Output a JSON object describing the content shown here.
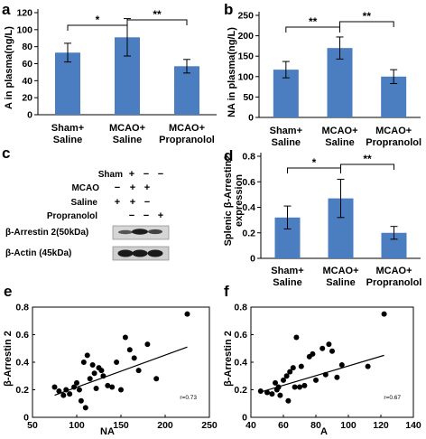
{
  "colors": {
    "bar": "#4a7ec1",
    "axis": "#000000",
    "point": "#000000"
  },
  "chart_data": [
    {
      "panel": "a",
      "type": "bar",
      "ylabel": "A in plasma(ng/L)",
      "ylim": [
        0,
        120
      ],
      "yticks": [
        0,
        20,
        40,
        60,
        80,
        100,
        120
      ],
      "categories": [
        [
          "Sham+",
          "Saline"
        ],
        [
          "MCAO+",
          "Saline"
        ],
        [
          "MCAO+",
          "Propranolol"
        ]
      ],
      "values": [
        73,
        91,
        57
      ],
      "errors": [
        11,
        22,
        8
      ],
      "significance": [
        {
          "from": 0,
          "to": 1,
          "label": "*"
        },
        {
          "from": 1,
          "to": 2,
          "label": "**"
        }
      ]
    },
    {
      "panel": "b",
      "type": "bar",
      "ylabel": "NA in plasma(ng/L)",
      "ylim": [
        0,
        250
      ],
      "yticks": [
        0,
        50,
        100,
        150,
        200,
        250
      ],
      "categories": [
        [
          "Sham+",
          "Saline"
        ],
        [
          "MCAO+",
          "Saline"
        ],
        [
          "MCAO+",
          "Propranolol"
        ]
      ],
      "values": [
        117,
        170,
        100
      ],
      "errors": [
        20,
        27,
        17
      ],
      "significance": [
        {
          "from": 0,
          "to": 1,
          "label": "**"
        },
        {
          "from": 1,
          "to": 2,
          "label": "**"
        }
      ]
    },
    {
      "panel": "d",
      "type": "bar",
      "ylabel": "Splenic β-Arrestin2 expression",
      "ylabel_lines": [
        "Splenic β-Arrestin2",
        "expression"
      ],
      "ylim": [
        0,
        0.8
      ],
      "yticks": [
        0,
        0.2,
        0.4,
        0.6,
        0.8
      ],
      "categories": [
        [
          "Sham+",
          "Saline"
        ],
        [
          "MCAO+",
          "Saline"
        ],
        [
          "MCAO+",
          "Propranolol"
        ]
      ],
      "values": [
        0.32,
        0.47,
        0.2
      ],
      "errors": [
        0.09,
        0.15,
        0.05
      ],
      "significance": [
        {
          "from": 0,
          "to": 1,
          "label": "*"
        },
        {
          "from": 1,
          "to": 2,
          "label": "**"
        }
      ]
    },
    {
      "panel": "e",
      "type": "scatter",
      "xlabel": "NA",
      "ylabel": "β-Arrestin 2",
      "xlim": [
        50,
        250
      ],
      "ylim": [
        0,
        0.8
      ],
      "xticks": [
        50,
        100,
        150,
        200,
        250
      ],
      "yticks": [
        0,
        0.2,
        0.4,
        0.6,
        0.8
      ],
      "annotation": "r=0.73",
      "trendline": [
        [
          75,
          0.16
        ],
        [
          225,
          0.51
        ]
      ],
      "x": [
        75,
        80,
        85,
        88,
        92,
        97,
        100,
        103,
        105,
        108,
        110,
        112,
        115,
        118,
        120,
        122,
        125,
        128,
        130,
        135,
        140,
        145,
        150,
        155,
        160,
        165,
        170,
        180,
        190,
        225
      ],
      "y": [
        0.22,
        0.19,
        0.16,
        0.2,
        0.17,
        0.22,
        0.25,
        0.2,
        0.12,
        0.4,
        0.07,
        0.45,
        0.28,
        0.38,
        0.32,
        0.21,
        0.36,
        0.34,
        0.3,
        0.23,
        0.22,
        0.4,
        0.2,
        0.58,
        0.49,
        0.43,
        0.34,
        0.53,
        0.28,
        0.75
      ]
    },
    {
      "panel": "f",
      "type": "scatter",
      "xlabel": "A",
      "ylabel": "β-Arrestin 2",
      "xlim": [
        40,
        140
      ],
      "ylim": [
        0,
        0.8
      ],
      "xticks": [
        40,
        60,
        80,
        100,
        120,
        140
      ],
      "yticks": [
        0,
        0.2,
        0.4,
        0.6,
        0.8
      ],
      "annotation": "r=0.67",
      "trendline": [
        [
          45,
          0.18
        ],
        [
          122,
          0.45
        ]
      ],
      "x": [
        46,
        50,
        53,
        55,
        56,
        57,
        58,
        60,
        62,
        63,
        64,
        66,
        67,
        68,
        70,
        71,
        73,
        76,
        78,
        80,
        84,
        86,
        88,
        90,
        93,
        96,
        112,
        122
      ],
      "y": [
        0.19,
        0.18,
        0.17,
        0.25,
        0.2,
        0.22,
        0.16,
        0.27,
        0.3,
        0.12,
        0.33,
        0.36,
        0.22,
        0.58,
        0.22,
        0.37,
        0.23,
        0.44,
        0.46,
        0.27,
        0.5,
        0.31,
        0.53,
        0.48,
        0.29,
        0.38,
        0.37,
        0.75
      ]
    }
  ],
  "blot": {
    "panel": "c",
    "row_labels": [
      "Sham",
      "MCAO",
      "Saline",
      "Propranolol"
    ],
    "signs": [
      [
        "+",
        "−",
        "−"
      ],
      [
        "−",
        "+",
        "+"
      ],
      [
        "+",
        "+",
        "−"
      ],
      [
        "−",
        "−",
        "+"
      ]
    ],
    "band_labels": [
      "β-Arrestin 2(50kDa)",
      "β-Actin (45kDa)"
    ]
  }
}
